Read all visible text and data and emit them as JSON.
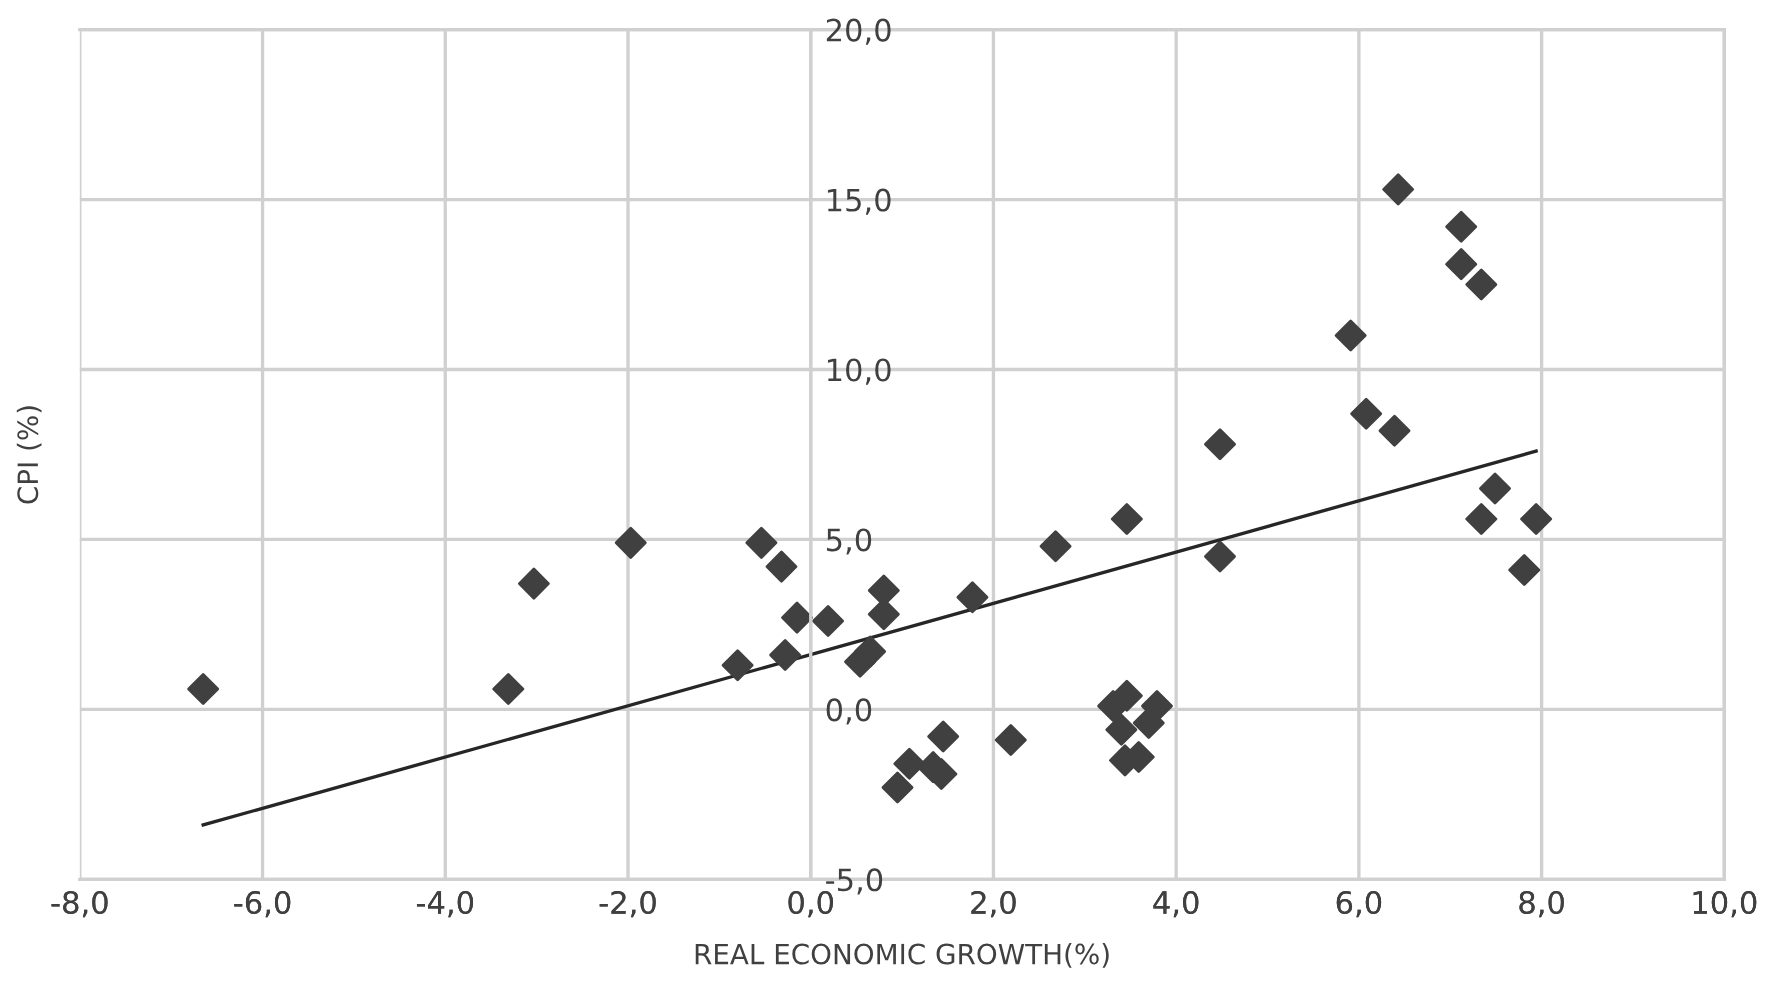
{
  "chart_data": {
    "type": "scatter",
    "xlabel": "REAL ECONOMIC GROWTH(%)",
    "ylabel": "CPI (%)",
    "xlim": [
      -8,
      10
    ],
    "ylim": [
      -5,
      20
    ],
    "xticks": [
      {
        "value": -8,
        "label": "-8,0"
      },
      {
        "value": -6,
        "label": "-6,0"
      },
      {
        "value": -4,
        "label": "-4,0"
      },
      {
        "value": -2,
        "label": "-2,0"
      },
      {
        "value": 0,
        "label": "0,0"
      },
      {
        "value": 2,
        "label": "2,0"
      },
      {
        "value": 4,
        "label": "4,0"
      },
      {
        "value": 6,
        "label": "6,0"
      },
      {
        "value": 8,
        "label": "8,0"
      },
      {
        "value": 10,
        "label": "10,0"
      }
    ],
    "yticks": [
      {
        "value": -5,
        "label": "-5,0"
      },
      {
        "value": 0,
        "label": "0,0"
      },
      {
        "value": 5,
        "label": "5,0"
      },
      {
        "value": 10,
        "label": "10,0"
      },
      {
        "value": 15,
        "label": "15,0"
      },
      {
        "value": 20,
        "label": "20,0"
      }
    ],
    "grid": true,
    "marker": "diamond",
    "legend": false,
    "series": [
      {
        "color": "#404040",
        "x": [
          -6.65,
          -3.31,
          -3.03,
          -1.97,
          -0.54,
          -0.32,
          -0.8,
          -0.28,
          -0.15,
          0.19,
          0.8,
          0.8,
          0.65,
          0.54,
          2.68,
          3.46,
          4.48,
          1.77,
          7.34,
          7.94,
          7.81,
          7.49,
          1.45,
          1.08,
          0.95,
          1.34,
          1.43,
          2.19,
          3.31,
          3.46,
          3.4,
          3.79,
          3.7,
          3.44,
          3.59,
          6.43,
          7.12,
          7.12,
          7.34,
          5.91,
          6.08,
          6.39,
          4.48
        ],
        "values": [
          0.6,
          0.6,
          3.7,
          4.9,
          4.9,
          4.2,
          1.3,
          1.6,
          2.7,
          2.6,
          3.5,
          2.8,
          1.7,
          1.4,
          4.8,
          5.6,
          4.5,
          3.3,
          5.6,
          5.6,
          4.1,
          6.5,
          -0.8,
          -1.6,
          -2.3,
          -1.7,
          -1.9,
          -0.9,
          0.1,
          0.4,
          -0.6,
          0.1,
          -0.4,
          -1.5,
          -1.4,
          15.3,
          14.2,
          13.1,
          12.5,
          11.0,
          8.7,
          8.2,
          7.8
        ]
      },
      {
        "type": "line",
        "color": "#262626",
        "x": [
          -6.65,
          7.94
        ],
        "values": [
          -3.4,
          7.6
        ],
        "marker": "none",
        "line_style": "solid"
      }
    ]
  }
}
